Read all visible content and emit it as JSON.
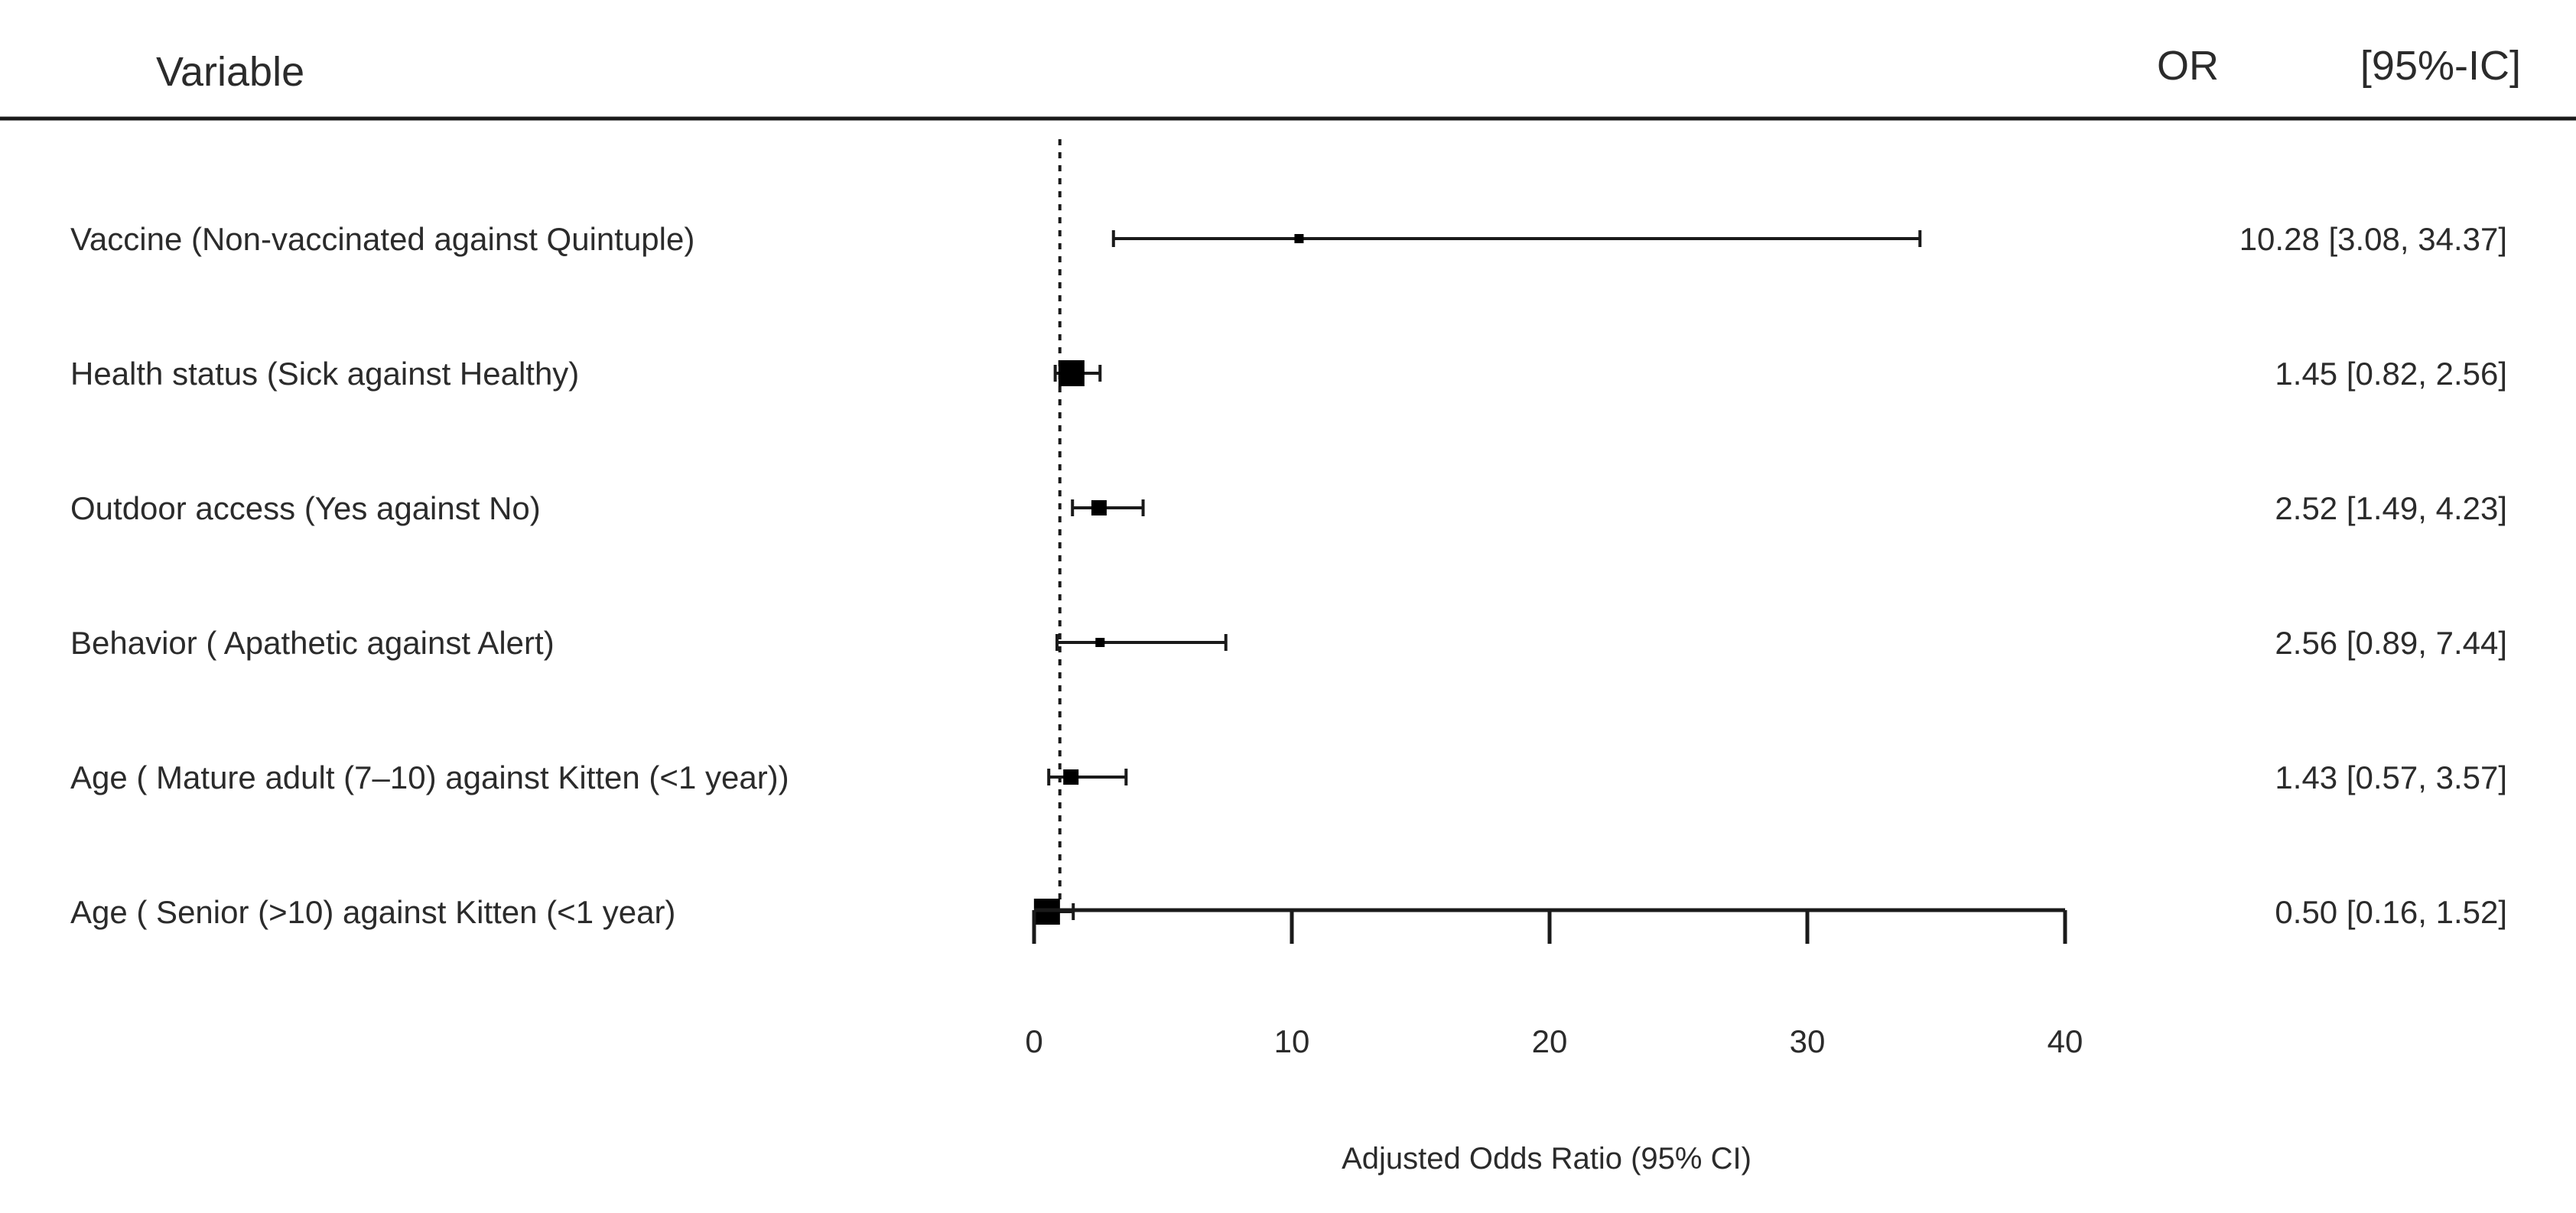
{
  "chart_data": {
    "type": "forest",
    "header": {
      "variable": "Variable",
      "or": "OR",
      "ci": "[95%-IC]"
    },
    "xlabel": "Adjusted Odds Ratio (95% CI)",
    "xlim": [
      0,
      40
    ],
    "xticks": [
      0,
      10,
      20,
      30,
      40
    ],
    "xtick_labels": [
      "0",
      "10",
      "20",
      "30",
      "40"
    ],
    "reference_line": 1,
    "rows": [
      {
        "label": "Vaccine (Non-vaccinated against Quintuple)",
        "or": 10.28,
        "lower": 3.08,
        "upper": 34.37,
        "text": "10.28 [3.08, 34.37]",
        "marker": "small"
      },
      {
        "label": "Health status (Sick against Healthy)",
        "or": 1.45,
        "lower": 0.82,
        "upper": 2.56,
        "text": "1.45 [0.82,  2.56]",
        "marker": "large"
      },
      {
        "label": "Outdoor access (Yes against No)",
        "or": 2.52,
        "lower": 1.49,
        "upper": 4.23,
        "text": "2.52 [1.49,  4.23]",
        "marker": "medium"
      },
      {
        "label": "Behavior ( Apathetic against Alert)",
        "or": 2.56,
        "lower": 0.89,
        "upper": 7.44,
        "text": "2.56 [0.89,  7.44]",
        "marker": "small"
      },
      {
        "label": "Age ( Mature adult (7–10) against  Kitten (<1 year))",
        "or": 1.43,
        "lower": 0.57,
        "upper": 3.57,
        "text": "1.43 [0.57,  3.57]",
        "marker": "medium"
      },
      {
        "label": "Age ( Senior (>10)  against  Kitten (<1 year)",
        "or": 0.5,
        "lower": 0.16,
        "upper": 1.52,
        "text": "0.50 [0.16,  1.52]",
        "marker": "large"
      }
    ],
    "colors": {
      "text": "#2b2b2b",
      "line": "#1a1a1a",
      "marker": "#000000"
    },
    "grid": false
  }
}
